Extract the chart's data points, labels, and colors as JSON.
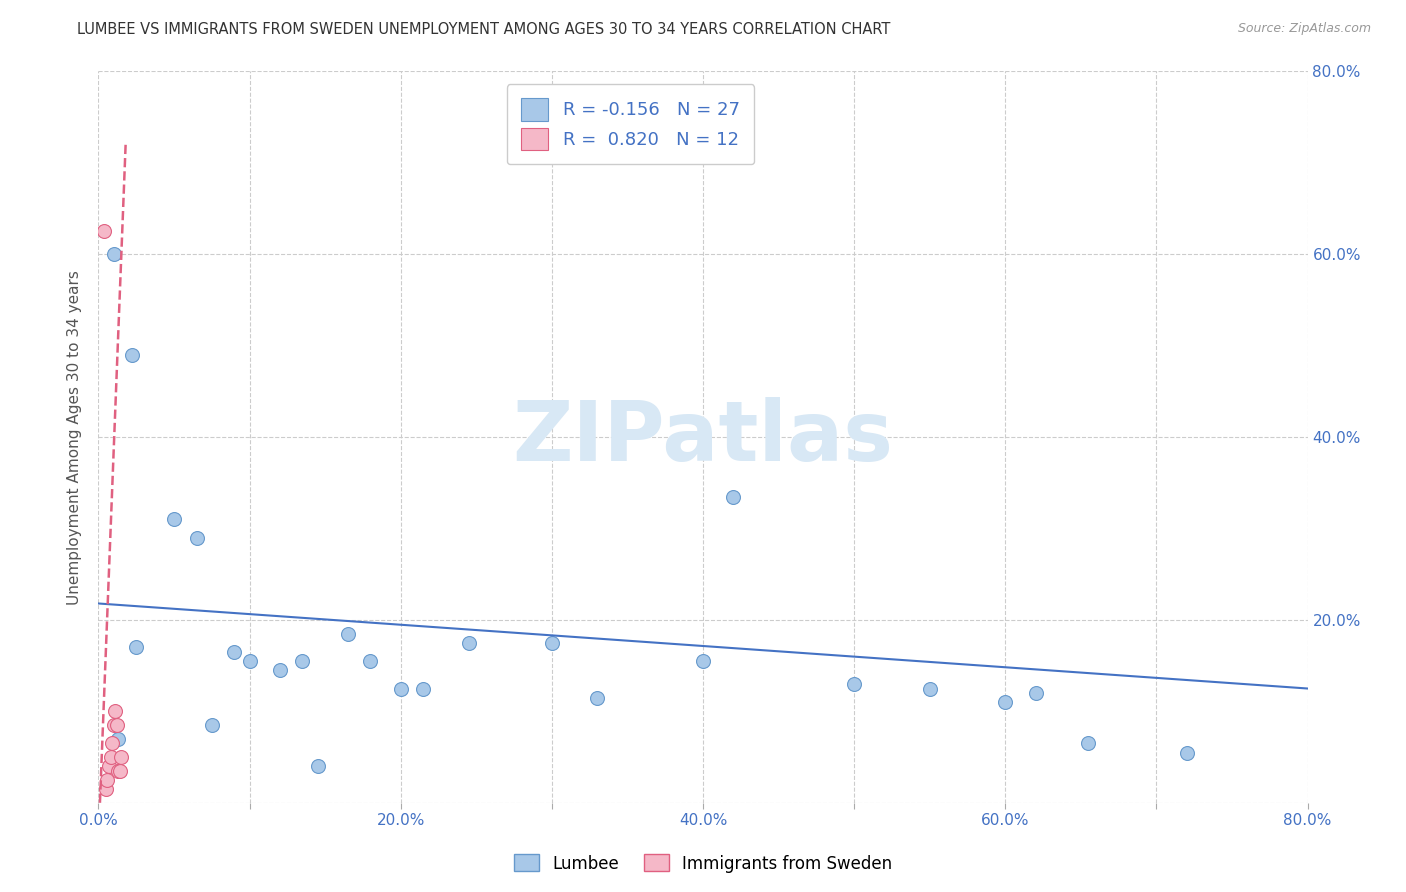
{
  "title": "LUMBEE VS IMMIGRANTS FROM SWEDEN UNEMPLOYMENT AMONG AGES 30 TO 34 YEARS CORRELATION CHART",
  "source": "Source: ZipAtlas.com",
  "ylabel": "Unemployment Among Ages 30 to 34 years",
  "xlim": [
    0,
    0.8
  ],
  "ylim": [
    0,
    0.8
  ],
  "xtick_labels": [
    "0.0%",
    "",
    "20.0%",
    "",
    "40.0%",
    "",
    "60.0%",
    "",
    "80.0%"
  ],
  "xtick_vals": [
    0.0,
    0.1,
    0.2,
    0.3,
    0.4,
    0.5,
    0.6,
    0.7,
    0.8
  ],
  "right_ytick_labels": [
    "",
    "20.0%",
    "40.0%",
    "60.0%",
    "80.0%"
  ],
  "right_ytick_vals": [
    0.0,
    0.2,
    0.4,
    0.6,
    0.8
  ],
  "left_ytick_vals": [
    0.0,
    0.2,
    0.4,
    0.6,
    0.8
  ],
  "lumbee_color": "#a8c8e8",
  "lumbee_edge_color": "#6699cc",
  "sweden_color": "#f5b8c8",
  "sweden_edge_color": "#e06080",
  "trend_lumbee_color": "#4472c4",
  "trend_sweden_color": "#e06080",
  "watermark_color": "#d8e8f5",
  "R_lumbee": -0.156,
  "N_lumbee": 27,
  "R_sweden": 0.82,
  "N_sweden": 12,
  "lumbee_x": [
    0.01,
    0.013,
    0.022,
    0.025,
    0.05,
    0.065,
    0.075,
    0.09,
    0.1,
    0.12,
    0.135,
    0.145,
    0.165,
    0.18,
    0.2,
    0.215,
    0.245,
    0.3,
    0.33,
    0.4,
    0.42,
    0.5,
    0.55,
    0.6,
    0.62,
    0.655,
    0.72
  ],
  "lumbee_y": [
    0.6,
    0.07,
    0.49,
    0.17,
    0.31,
    0.29,
    0.085,
    0.165,
    0.155,
    0.145,
    0.155,
    0.04,
    0.185,
    0.155,
    0.125,
    0.125,
    0.175,
    0.175,
    0.115,
    0.155,
    0.335,
    0.13,
    0.125,
    0.11,
    0.12,
    0.065,
    0.055
  ],
  "sweden_x": [
    0.004,
    0.005,
    0.006,
    0.007,
    0.008,
    0.009,
    0.01,
    0.011,
    0.012,
    0.013,
    0.014,
    0.015
  ],
  "sweden_y": [
    0.625,
    0.015,
    0.025,
    0.04,
    0.05,
    0.065,
    0.085,
    0.1,
    0.085,
    0.035,
    0.035,
    0.05
  ],
  "marker_size": 100,
  "trend_lumbee_x0": 0.0,
  "trend_lumbee_x1": 0.8,
  "trend_lumbee_y0": 0.218,
  "trend_lumbee_y1": 0.125,
  "trend_sweden_x0": 0.001,
  "trend_sweden_x1": 0.018,
  "trend_sweden_y0": 0.0,
  "trend_sweden_y1": 0.72
}
